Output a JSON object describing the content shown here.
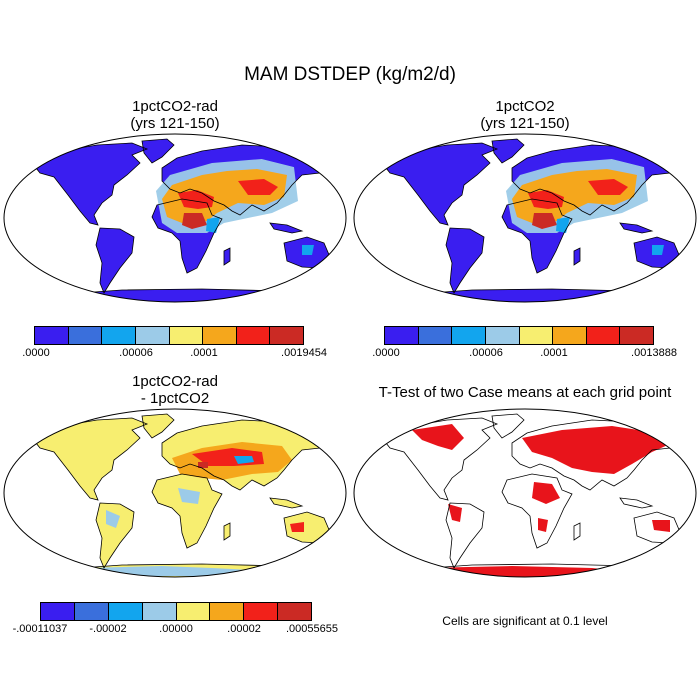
{
  "title": "MAM DSTDEP (kg/m2/d)",
  "colors": {
    "scale": [
      "#3a1ef0",
      "#3a6fdc",
      "#12a5ee",
      "#9ccbe8",
      "#f7ee70",
      "#f5a71c",
      "#f2211a",
      "#cb2a24"
    ],
    "ocean": "#ffffff",
    "signif": "#e8141b"
  },
  "panels": [
    {
      "title_line1": "1pctCO2-rad",
      "title_line2": "(yrs 121-150)",
      "colorbar_labels": [
        ".0000",
        ".00006",
        ".0001",
        ".0019454"
      ]
    },
    {
      "title_line1": "1pctCO2",
      "title_line2": "(yrs 121-150)",
      "colorbar_labels": [
        ".0000",
        ".00006",
        ".0001",
        ".0013888"
      ]
    },
    {
      "title_line1": "1pctCO2-rad",
      "title_line2": "- 1pctCO2",
      "colorbar_labels": [
        "-.00011037",
        "-.00002",
        ".00000",
        ".00002",
        ".00055655"
      ]
    },
    {
      "title_line1": "T-Test of two Case means at each grid point",
      "note": "Cells are significant at 0.1 level"
    }
  ]
}
